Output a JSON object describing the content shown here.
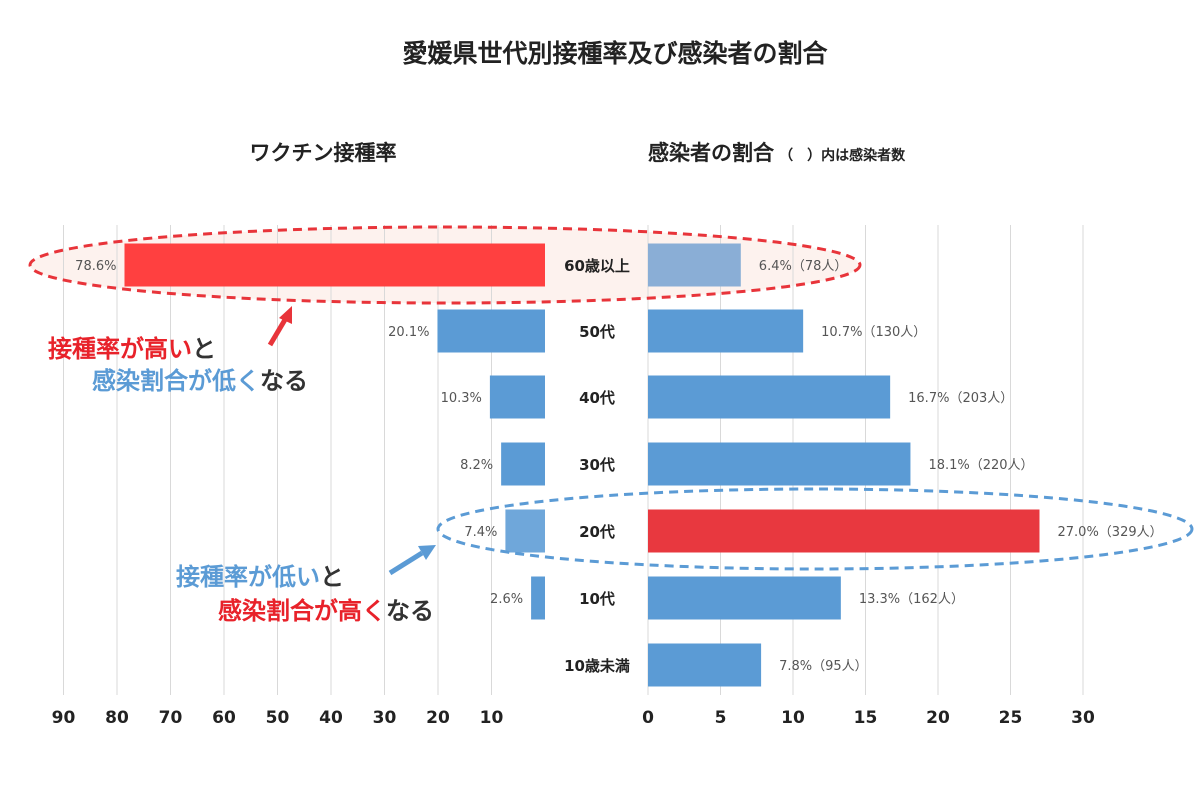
{
  "title": "愛媛県世代別接種率及び感染者の割合",
  "colors": {
    "bar_blue": "#5b9bd5",
    "bar_red": "#ff4040",
    "bar_red2": "#e8383f",
    "bar_light": "#8aaed6",
    "bar_light2": "#6fa7da",
    "ellipse_red": "#e8343a",
    "ellipse_blue": "#5b9bd5",
    "text_red": "#e8222a",
    "text_blue": "#5b9bd5",
    "text_dark": "#333333"
  },
  "chart_data": [
    {
      "type": "bar",
      "orientation": "horizontal",
      "direction": "right-to-left",
      "title": "ワクチン接種率",
      "categories": [
        "60歳以上",
        "50代",
        "40代",
        "30代",
        "20代",
        "10代",
        "10歳未満"
      ],
      "values": [
        78.6,
        20.1,
        10.3,
        8.2,
        7.4,
        2.6,
        null
      ],
      "data_labels": [
        "78.6%",
        "20.1%",
        "10.3%",
        "8.2%",
        "7.4%",
        "2.6%",
        ""
      ],
      "xlim": [
        0,
        90
      ],
      "x_ticks": [
        "90",
        "80",
        "70",
        "60",
        "50",
        "40",
        "30",
        "20",
        "10"
      ],
      "grid": true
    },
    {
      "type": "bar",
      "orientation": "horizontal",
      "title": "感染者の割合",
      "subtitle": "（　）内は感染者数",
      "categories": [
        "60歳以上",
        "50代",
        "40代",
        "30代",
        "20代",
        "10代",
        "10歳未満"
      ],
      "values": [
        6.4,
        10.7,
        16.7,
        18.1,
        27.0,
        13.3,
        7.8
      ],
      "counts": [
        78,
        130,
        203,
        220,
        329,
        162,
        95
      ],
      "data_labels": [
        "6.4%（78人）",
        "10.7%（130人）",
        "16.7%（203人）",
        "18.1%（220人）",
        "27.0%（329人）",
        "13.3%（162人）",
        "7.8%（95人）"
      ],
      "xlim": [
        0,
        30
      ],
      "x_ticks": [
        "0",
        "5",
        "10",
        "15",
        "20",
        "25",
        "30"
      ],
      "grid": true
    }
  ],
  "annotations": {
    "top": [
      {
        "text": "接種率が高い",
        "color": "red"
      },
      {
        "text": "と",
        "color": "dark"
      },
      {
        "text": "感染割合が低く",
        "color": "blue"
      },
      {
        "text": "なる",
        "color": "dark"
      }
    ],
    "bottom": [
      {
        "text": "接種率が低い",
        "color": "blue"
      },
      {
        "text": "と",
        "color": "dark"
      },
      {
        "text": "感染割合が高く",
        "color": "red"
      },
      {
        "text": "なる",
        "color": "dark"
      }
    ]
  }
}
